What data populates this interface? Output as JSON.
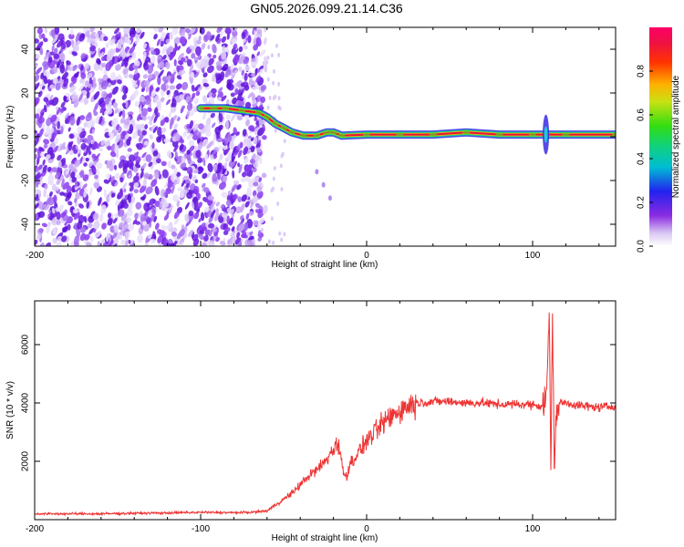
{
  "title": "GN05.2026.099.21.14.C36",
  "chart_data": [
    {
      "type": "heatmap",
      "name": "spectrogram",
      "xlabel": "Height of straight line (km)",
      "ylabel": "Frequency (Hz)",
      "xlim": [
        -200,
        150
      ],
      "ylim": [
        -50,
        50
      ],
      "xticks": [
        -200,
        -100,
        0,
        100
      ],
      "xtick_labels": [
        "-200",
        "-100",
        "0",
        "100"
      ],
      "yticks": [
        -40,
        -20,
        0,
        20,
        40
      ],
      "ytick_labels": [
        "-40",
        "-20",
        "0",
        "20",
        "40"
      ],
      "noise_region_end_km": -63,
      "ridge": [
        {
          "x": -100,
          "y": 13
        },
        {
          "x": -92,
          "y": 13
        },
        {
          "x": -85,
          "y": 13
        },
        {
          "x": -75,
          "y": 12
        },
        {
          "x": -65,
          "y": 11
        },
        {
          "x": -60,
          "y": 9
        },
        {
          "x": -55,
          "y": 6
        },
        {
          "x": -50,
          "y": 4
        },
        {
          "x": -45,
          "y": 2
        },
        {
          "x": -38,
          "y": 0.5
        },
        {
          "x": -30,
          "y": 0.5
        },
        {
          "x": -24,
          "y": 2
        },
        {
          "x": -20,
          "y": 2
        },
        {
          "x": -15,
          "y": 0.5
        },
        {
          "x": 0,
          "y": 1
        },
        {
          "x": 20,
          "y": 1
        },
        {
          "x": 40,
          "y": 1
        },
        {
          "x": 60,
          "y": 2
        },
        {
          "x": 80,
          "y": 1
        },
        {
          "x": 100,
          "y": 1
        },
        {
          "x": 120,
          "y": 1
        },
        {
          "x": 150,
          "y": 1
        }
      ],
      "colorbar": {
        "label": "Normalized spectral amplitude",
        "range": [
          0,
          1
        ],
        "ticks": [
          0.0,
          0.2,
          0.4,
          0.6,
          0.8
        ],
        "tick_labels": [
          "0.0",
          "0.2",
          "0.4",
          "0.6",
          "0.8"
        ]
      }
    },
    {
      "type": "line",
      "name": "snr",
      "xlabel": "Height of straight line (km)",
      "ylabel": "SNR (10 * v/v)",
      "xlim": [
        -200,
        150
      ],
      "ylim": [
        0,
        7500
      ],
      "xticks": [
        -200,
        -100,
        0,
        100
      ],
      "xtick_labels": [
        "-200",
        "-100",
        "0",
        "100"
      ],
      "yticks": [
        2000,
        4000,
        6000
      ],
      "ytick_labels": [
        "2000",
        "4000",
        "6000"
      ],
      "color": "#ee3333",
      "series": [
        {
          "name": "SNR",
          "x": [
            -200,
            -180,
            -160,
            -140,
            -120,
            -100,
            -80,
            -70,
            -60,
            -55,
            -50,
            -45,
            -40,
            -35,
            -30,
            -25,
            -20,
            -18,
            -16,
            -14,
            -12,
            -10,
            -5,
            0,
            5,
            10,
            15,
            20,
            25,
            30,
            40,
            50,
            60,
            70,
            80,
            90,
            100,
            105,
            108,
            110,
            111,
            112,
            113,
            115,
            120,
            130,
            140,
            150
          ],
          "y": [
            200,
            200,
            200,
            220,
            230,
            250,
            240,
            250,
            300,
            500,
            700,
            900,
            1200,
            1500,
            1700,
            2000,
            2400,
            2700,
            2300,
            1600,
            1500,
            1900,
            2300,
            2700,
            3000,
            3300,
            3550,
            3750,
            3900,
            4000,
            4050,
            4050,
            4000,
            4000,
            3950,
            3950,
            3950,
            3900,
            4000,
            7000,
            1500,
            7200,
            2000,
            4000,
            4000,
            3900,
            3850,
            3900
          ]
        }
      ]
    }
  ]
}
